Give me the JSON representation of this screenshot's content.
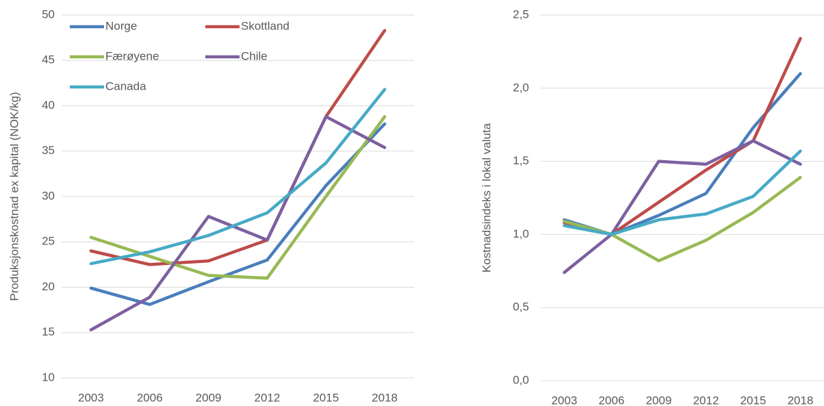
{
  "chart_data": [
    {
      "type": "line",
      "y_label": "Produksjonskostnad ex kapital (NOK/kg)",
      "categories": [
        "2003",
        "2006",
        "2009",
        "2012",
        "2015",
        "2018"
      ],
      "ylim": [
        10,
        50
      ],
      "yticks": [
        10,
        15,
        20,
        25,
        30,
        35,
        40,
        45,
        50
      ],
      "grid": true,
      "legend": "upper left",
      "series": [
        {
          "name": "Norge",
          "color": "#4a7ebb",
          "values": [
            19.9,
            18.1,
            20.6,
            23.0,
            31.2,
            38.0
          ]
        },
        {
          "name": "Skottland",
          "color": "#be4b48",
          "values": [
            24.0,
            22.5,
            22.9,
            25.2,
            38.8,
            48.3
          ]
        },
        {
          "name": "Færøyene",
          "color": "#98b954",
          "values": [
            25.5,
            23.4,
            21.3,
            21.0,
            30.0,
            38.8
          ]
        },
        {
          "name": "Chile",
          "color": "#7d60a0",
          "values": [
            15.3,
            18.9,
            27.8,
            25.2,
            38.8,
            35.4
          ]
        },
        {
          "name": "Canada",
          "color": "#46aac5",
          "values": [
            22.6,
            23.9,
            25.7,
            28.2,
            33.7,
            41.8
          ]
        }
      ]
    },
    {
      "type": "line",
      "y_label": "Kostnadsindeks i lokal valuta",
      "categories": [
        "2003",
        "2006",
        "2009",
        "2012",
        "2015",
        "2018"
      ],
      "ylim": [
        0,
        2.5
      ],
      "yticks": [
        {
          "value": 0,
          "label": "0,0"
        },
        {
          "value": 0.5,
          "label": "0,5"
        },
        {
          "value": 1,
          "label": "1,0"
        },
        {
          "value": 1.5,
          "label": "1,5"
        },
        {
          "value": 2,
          "label": "2,0"
        },
        {
          "value": 2.5,
          "label": "2,5"
        }
      ],
      "grid": true,
      "series": [
        {
          "color": "#4a7ebb",
          "values": [
            1.1,
            1.0,
            1.13,
            1.28,
            1.73,
            2.1
          ]
        },
        {
          "color": "#be4b48",
          "values": [
            1.08,
            1.0,
            1.22,
            1.44,
            1.64,
            2.34
          ]
        },
        {
          "color": "#98b954",
          "values": [
            1.09,
            1.0,
            0.82,
            0.96,
            1.15,
            1.39
          ]
        },
        {
          "color": "#7d60a0",
          "values": [
            0.74,
            1.0,
            1.5,
            1.48,
            1.64,
            1.48
          ]
        },
        {
          "color": "#46aac5",
          "values": [
            1.06,
            1.0,
            1.1,
            1.14,
            1.26,
            1.57
          ]
        }
      ]
    }
  ]
}
